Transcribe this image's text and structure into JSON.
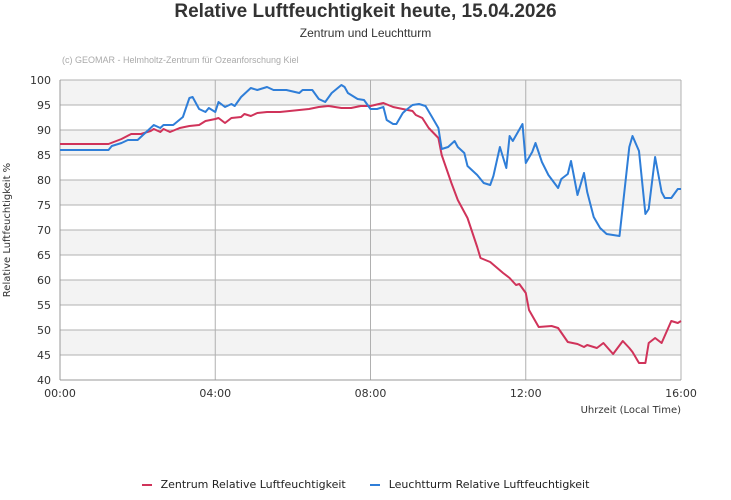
{
  "chart_data": {
    "type": "line",
    "title": "Relative Luftfeuchtigkeit heute, 15.04.2026",
    "subtitle": "Zentrum und Leuchtturm",
    "credit": "(c) GEOMAR - Helmholtz-Zentrum für Ozeanforschung Kiel",
    "xlabel": "Uhrzeit (Local Time)",
    "ylabel": "Relative Luftfeuchtigkeit %",
    "xlim": [
      "00:00",
      "16:00"
    ],
    "ylim": [
      40,
      100
    ],
    "x_ticks": [
      "00:00",
      "04:00",
      "08:00",
      "12:00",
      "16:00"
    ],
    "y_ticks": [
      40,
      45,
      50,
      55,
      60,
      65,
      70,
      75,
      80,
      85,
      90,
      95,
      100
    ],
    "grid": true,
    "legend_position": "bottom",
    "series": [
      {
        "name": "Zentrum Relative Luftfeuchtigkeit",
        "color": "#d0335a",
        "points": [
          [
            "00:00",
            87.2
          ],
          [
            "01:15",
            87.2
          ],
          [
            "01:35",
            88.2
          ],
          [
            "01:50",
            89.2
          ],
          [
            "02:05",
            89.2
          ],
          [
            "02:20",
            89.8
          ],
          [
            "02:25",
            90.2
          ],
          [
            "02:35",
            89.6
          ],
          [
            "02:40",
            90.2
          ],
          [
            "02:50",
            89.6
          ],
          [
            "03:05",
            90.4
          ],
          [
            "03:20",
            90.8
          ],
          [
            "03:35",
            91
          ],
          [
            "03:45",
            91.8
          ],
          [
            "04:00",
            92.2
          ],
          [
            "04:05",
            92.4
          ],
          [
            "04:15",
            91.4
          ],
          [
            "04:25",
            92.4
          ],
          [
            "04:40",
            92.6
          ],
          [
            "04:45",
            93.2
          ],
          [
            "04:55",
            92.8
          ],
          [
            "05:05",
            93.4
          ],
          [
            "05:20",
            93.6
          ],
          [
            "05:40",
            93.6
          ],
          [
            "05:55",
            93.8
          ],
          [
            "06:10",
            94
          ],
          [
            "06:25",
            94.2
          ],
          [
            "06:40",
            94.6
          ],
          [
            "06:55",
            94.8
          ],
          [
            "07:15",
            94.4
          ],
          [
            "07:30",
            94.4
          ],
          [
            "07:45",
            94.8
          ],
          [
            "08:00",
            94.8
          ],
          [
            "08:20",
            95.4
          ],
          [
            "08:35",
            94.6
          ],
          [
            "08:50",
            94.2
          ],
          [
            "09:05",
            93.8
          ],
          [
            "09:10",
            93
          ],
          [
            "09:20",
            92.4
          ],
          [
            "09:30",
            90.4
          ],
          [
            "09:45",
            88.4
          ],
          [
            "09:50",
            85
          ],
          [
            "10:05",
            79.4
          ],
          [
            "10:15",
            76
          ],
          [
            "10:30",
            72.4
          ],
          [
            "10:45",
            66.6
          ],
          [
            "10:50",
            64.4
          ],
          [
            "11:05",
            63.6
          ],
          [
            "11:25",
            61.4
          ],
          [
            "11:35",
            60.4
          ],
          [
            "11:45",
            59
          ],
          [
            "11:50",
            59.2
          ],
          [
            "12:00",
            57.4
          ],
          [
            "12:05",
            54
          ],
          [
            "12:20",
            50.6
          ],
          [
            "12:40",
            50.8
          ],
          [
            "12:50",
            50.4
          ],
          [
            "13:05",
            47.6
          ],
          [
            "13:20",
            47.2
          ],
          [
            "13:30",
            46.6
          ],
          [
            "13:35",
            47
          ],
          [
            "13:50",
            46.4
          ],
          [
            "14:00",
            47.4
          ],
          [
            "14:15",
            45.2
          ],
          [
            "14:30",
            47.8
          ],
          [
            "14:40",
            46.4
          ],
          [
            "14:45",
            45.6
          ],
          [
            "14:55",
            43.4
          ],
          [
            "15:05",
            43.4
          ],
          [
            "15:10",
            47.4
          ],
          [
            "15:20",
            48.4
          ],
          [
            "15:30",
            47.4
          ],
          [
            "15:45",
            51.8
          ],
          [
            "15:55",
            51.4
          ],
          [
            "16:00",
            51.8
          ]
        ]
      },
      {
        "name": "Leuchtturm Relative Luftfeuchtigkeit",
        "color": "#2f7ed8",
        "points": [
          [
            "00:00",
            86
          ],
          [
            "01:15",
            86
          ],
          [
            "01:20",
            86.8
          ],
          [
            "01:35",
            87.4
          ],
          [
            "01:45",
            88
          ],
          [
            "02:00",
            88
          ],
          [
            "02:25",
            91
          ],
          [
            "02:35",
            90.4
          ],
          [
            "02:40",
            91
          ],
          [
            "02:55",
            91
          ],
          [
            "03:10",
            92.6
          ],
          [
            "03:20",
            96.4
          ],
          [
            "03:25",
            96.6
          ],
          [
            "03:35",
            94.2
          ],
          [
            "03:45",
            93.6
          ],
          [
            "03:50",
            94.4
          ],
          [
            "04:00",
            93.6
          ],
          [
            "04:05",
            95.6
          ],
          [
            "04:15",
            94.6
          ],
          [
            "04:25",
            95.2
          ],
          [
            "04:30",
            94.8
          ],
          [
            "04:40",
            96.6
          ],
          [
            "04:55",
            98.4
          ],
          [
            "05:05",
            98
          ],
          [
            "05:20",
            98.6
          ],
          [
            "05:30",
            98
          ],
          [
            "05:50",
            98
          ],
          [
            "06:10",
            97.4
          ],
          [
            "06:15",
            98
          ],
          [
            "06:30",
            98
          ],
          [
            "06:40",
            96.2
          ],
          [
            "06:50",
            95.6
          ],
          [
            "07:00",
            97.4
          ],
          [
            "07:15",
            99
          ],
          [
            "07:20",
            98.6
          ],
          [
            "07:25",
            97.4
          ],
          [
            "07:40",
            96.2
          ],
          [
            "07:50",
            96
          ],
          [
            "08:00",
            94.2
          ],
          [
            "08:10",
            94.2
          ],
          [
            "08:20",
            94.6
          ],
          [
            "08:25",
            92
          ],
          [
            "08:35",
            91.2
          ],
          [
            "08:40",
            91.2
          ],
          [
            "08:50",
            93.4
          ],
          [
            "08:55",
            94
          ],
          [
            "09:05",
            95
          ],
          [
            "09:15",
            95.2
          ],
          [
            "09:25",
            94.8
          ],
          [
            "09:35",
            92.6
          ],
          [
            "09:45",
            90.4
          ],
          [
            "09:50",
            86.2
          ],
          [
            "10:00",
            86.6
          ],
          [
            "10:10",
            87.8
          ],
          [
            "10:15",
            86.6
          ],
          [
            "10:25",
            85.4
          ],
          [
            "10:30",
            82.8
          ],
          [
            "10:45",
            81
          ],
          [
            "10:55",
            79.4
          ],
          [
            "11:05",
            79
          ],
          [
            "11:10",
            80.8
          ],
          [
            "11:20",
            86.6
          ],
          [
            "11:30",
            82.4
          ],
          [
            "11:35",
            88.8
          ],
          [
            "11:40",
            87.8
          ],
          [
            "11:55",
            91.2
          ],
          [
            "12:00",
            83.4
          ],
          [
            "12:10",
            85.6
          ],
          [
            "12:15",
            87.4
          ],
          [
            "12:25",
            83.6
          ],
          [
            "12:35",
            81
          ],
          [
            "12:50",
            78.4
          ],
          [
            "12:55",
            80.2
          ],
          [
            "13:05",
            81.2
          ],
          [
            "13:10",
            83.8
          ],
          [
            "13:20",
            77
          ],
          [
            "13:30",
            81.4
          ],
          [
            "13:35",
            77.6
          ],
          [
            "13:45",
            72.6
          ],
          [
            "13:55",
            70.4
          ],
          [
            "14:05",
            69.2
          ],
          [
            "14:25",
            68.8
          ],
          [
            "14:40",
            86.6
          ],
          [
            "14:45",
            88.8
          ],
          [
            "14:55",
            85.8
          ],
          [
            "15:05",
            73.2
          ],
          [
            "15:10",
            74.2
          ],
          [
            "15:20",
            84.6
          ],
          [
            "15:30",
            77.6
          ],
          [
            "15:35",
            76.4
          ],
          [
            "15:45",
            76.4
          ],
          [
            "15:55",
            78.2
          ],
          [
            "16:00",
            78.2
          ]
        ]
      }
    ]
  }
}
